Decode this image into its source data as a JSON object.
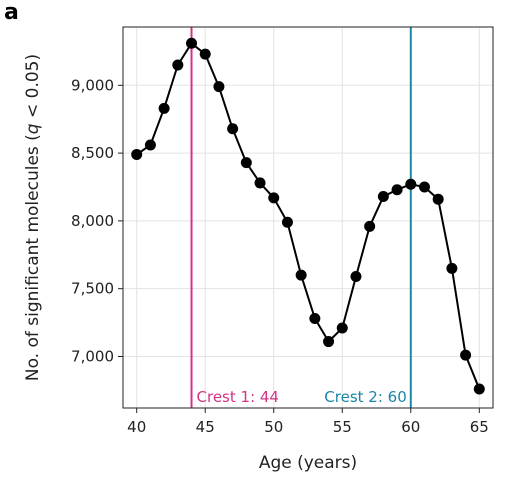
{
  "panel_label": "a",
  "chart_data": {
    "type": "line",
    "title": "",
    "xlabel": "Age (years)",
    "ylabel_main": "No. of significant molecules (",
    "ylabel_italic": "q",
    "ylabel_tail": " < 0.05)",
    "xlim": [
      39,
      66
    ],
    "ylim": [
      6620,
      9430
    ],
    "xticks": [
      40,
      45,
      50,
      55,
      60,
      65
    ],
    "xtick_labels": [
      "40",
      "45",
      "50",
      "55",
      "60",
      "65"
    ],
    "yticks": [
      7000,
      7500,
      8000,
      8500,
      9000
    ],
    "ytick_labels": [
      "7,000",
      "7,500",
      "8,000",
      "8,500",
      "9,000"
    ],
    "grid": true,
    "x": [
      40,
      41,
      42,
      43,
      44,
      45,
      46,
      47,
      48,
      49,
      50,
      51,
      52,
      53,
      54,
      55,
      56,
      57,
      58,
      59,
      60,
      61,
      62,
      63,
      64,
      65
    ],
    "y": [
      8490,
      8560,
      8830,
      9150,
      9310,
      9230,
      8990,
      8680,
      8430,
      8280,
      8170,
      7990,
      7600,
      7280,
      7110,
      7210,
      7590,
      7960,
      8180,
      8230,
      8270,
      8250,
      8160,
      7650,
      7010,
      6760
    ],
    "series_color": "#000000",
    "crests": [
      {
        "x": 44,
        "label": "Crest 1: 44",
        "color": "#d63384"
      },
      {
        "x": 60,
        "label": "Crest 2: 60",
        "color": "#1b86a6"
      }
    ]
  }
}
